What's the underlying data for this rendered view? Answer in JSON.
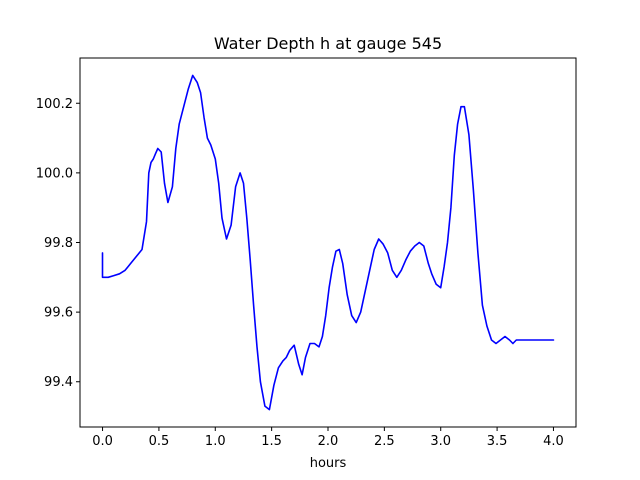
{
  "chart_data": {
    "type": "line",
    "title": "Water Depth h at gauge 545",
    "xlabel": "hours",
    "ylabel": "",
    "xlim": [
      -0.2,
      4.2
    ],
    "ylim": [
      99.27,
      100.33
    ],
    "xticks": [
      0.0,
      0.5,
      1.0,
      1.5,
      2.0,
      2.5,
      3.0,
      3.5,
      4.0
    ],
    "xtick_labels": [
      "0.0",
      "0.5",
      "1.0",
      "1.5",
      "2.0",
      "2.5",
      "3.0",
      "3.5",
      "4.0"
    ],
    "yticks": [
      99.4,
      99.6,
      99.8,
      100.0,
      100.2
    ],
    "ytick_labels": [
      "99.4",
      "99.6",
      "99.8",
      "100.0",
      "100.2"
    ],
    "grid": false,
    "series": [
      {
        "color": "#0000ff",
        "x": [
          0.0,
          0.0,
          0.05,
          0.1,
          0.15,
          0.2,
          0.25,
          0.3,
          0.35,
          0.39,
          0.41,
          0.43,
          0.45,
          0.47,
          0.49,
          0.52,
          0.55,
          0.58,
          0.62,
          0.65,
          0.68,
          0.72,
          0.76,
          0.8,
          0.84,
          0.87,
          0.9,
          0.93,
          0.96,
          1.0,
          1.03,
          1.06,
          1.1,
          1.14,
          1.18,
          1.22,
          1.25,
          1.28,
          1.31,
          1.34,
          1.37,
          1.4,
          1.44,
          1.48,
          1.52,
          1.56,
          1.6,
          1.63,
          1.66,
          1.7,
          1.74,
          1.77,
          1.8,
          1.84,
          1.88,
          1.92,
          1.95,
          1.98,
          2.01,
          2.04,
          2.07,
          2.1,
          2.13,
          2.17,
          2.21,
          2.25,
          2.29,
          2.33,
          2.37,
          2.41,
          2.45,
          2.49,
          2.53,
          2.57,
          2.61,
          2.65,
          2.69,
          2.73,
          2.77,
          2.81,
          2.85,
          2.89,
          2.92,
          2.96,
          3.0,
          3.03,
          3.06,
          3.09,
          3.12,
          3.15,
          3.18,
          3.21,
          3.25,
          3.29,
          3.33,
          3.37,
          3.41,
          3.45,
          3.49,
          3.53,
          3.57,
          3.61,
          3.64,
          3.67,
          3.7,
          3.73,
          3.76,
          3.8,
          3.84,
          3.88,
          3.92,
          3.96,
          4.0
        ],
        "values": [
          99.77,
          99.7,
          99.7,
          99.705,
          99.71,
          99.72,
          99.74,
          99.76,
          99.78,
          99.86,
          100.0,
          100.03,
          100.04,
          100.055,
          100.07,
          100.06,
          99.97,
          99.915,
          99.96,
          100.07,
          100.14,
          100.19,
          100.24,
          100.28,
          100.26,
          100.23,
          100.16,
          100.1,
          100.08,
          100.04,
          99.97,
          99.87,
          99.81,
          99.85,
          99.96,
          100.0,
          99.97,
          99.87,
          99.75,
          99.62,
          99.5,
          99.4,
          99.33,
          99.32,
          99.39,
          99.44,
          99.46,
          99.47,
          99.49,
          99.505,
          99.45,
          99.42,
          99.47,
          99.51,
          99.51,
          99.5,
          99.53,
          99.59,
          99.67,
          99.73,
          99.775,
          99.78,
          99.74,
          99.65,
          99.59,
          99.57,
          99.6,
          99.66,
          99.72,
          99.78,
          99.81,
          99.795,
          99.77,
          99.72,
          99.7,
          99.72,
          99.75,
          99.775,
          99.79,
          99.8,
          99.79,
          99.74,
          99.71,
          99.68,
          99.67,
          99.73,
          99.8,
          99.9,
          100.05,
          100.14,
          100.19,
          100.19,
          100.11,
          99.95,
          99.77,
          99.62,
          99.56,
          99.52,
          99.51,
          99.52,
          99.53,
          99.52,
          99.51,
          99.52,
          99.52,
          99.52,
          99.52,
          99.52,
          99.52,
          99.52,
          99.52,
          99.52,
          99.52
        ]
      }
    ]
  }
}
